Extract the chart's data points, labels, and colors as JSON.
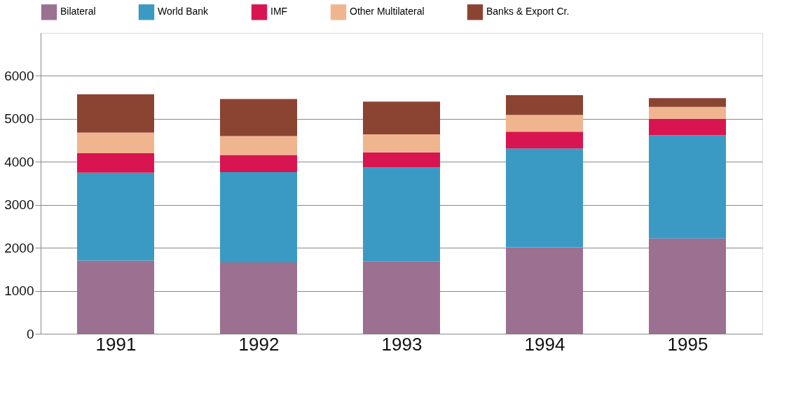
{
  "chart_data": {
    "type": "bar",
    "stacked": true,
    "categories": [
      "1991",
      "1992",
      "1993",
      "1994",
      "1995"
    ],
    "series": [
      {
        "name": "Bilateral",
        "color": "#9b7090",
        "values": [
          1700,
          1660,
          1680,
          2010,
          2220
        ]
      },
      {
        "name": "World Bank",
        "color": "#3a9ac4",
        "values": [
          2050,
          2100,
          2190,
          2300,
          2400
        ]
      },
      {
        "name": "IMF",
        "color": "#d81550",
        "values": [
          450,
          400,
          350,
          390,
          380
        ]
      },
      {
        "name": "Other Multilateral",
        "color": "#f0b58e",
        "values": [
          480,
          440,
          420,
          390,
          280
        ]
      },
      {
        "name": "Banks & Export Cr.",
        "color": "#8b4332",
        "values": [
          890,
          860,
          760,
          460,
          200
        ]
      }
    ],
    "ylim": [
      0,
      7000
    ],
    "yticks": [
      0,
      1000,
      2000,
      3000,
      4000,
      5000,
      6000
    ],
    "grid": "y",
    "legend": "top"
  }
}
